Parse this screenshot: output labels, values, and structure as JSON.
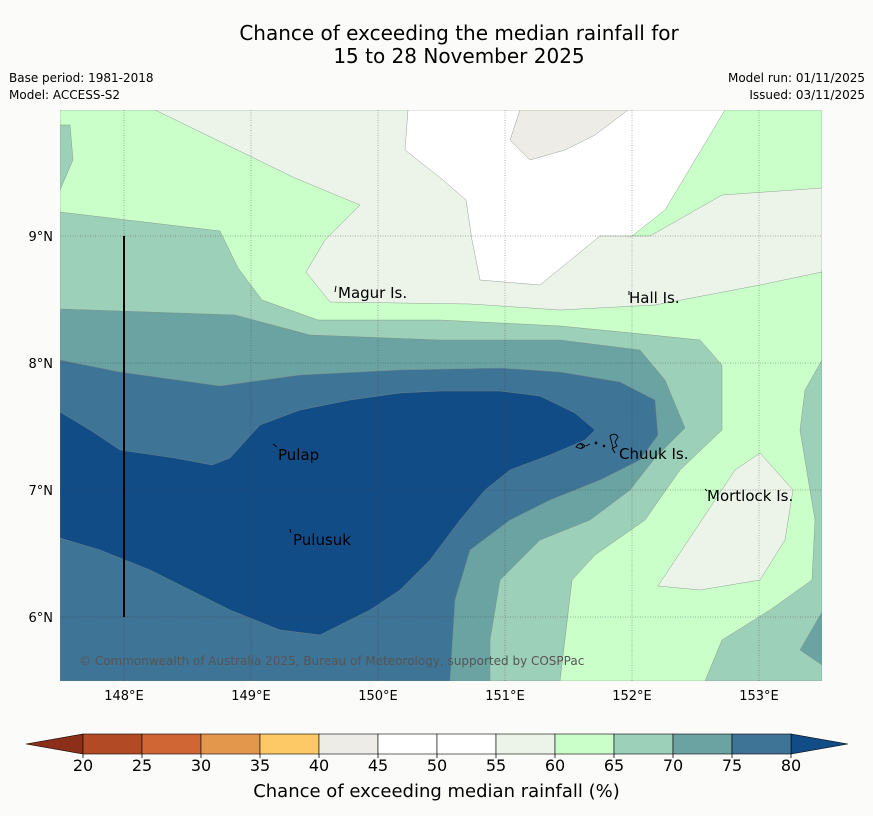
{
  "title": {
    "line1": "Chance of exceeding the median rainfall for",
    "line2": "15 to 28 November 2025"
  },
  "meta": {
    "base_period": "Base period: 1981-2018",
    "model": "Model: ACCESS-S2",
    "model_run": "Model run: 01/11/2025",
    "issued": "Issued: 03/11/2025"
  },
  "map": {
    "lon_range": [
      147.5,
      153.5
    ],
    "lat_range": [
      5.5,
      10.0
    ],
    "lon_ticks": [
      "148°E",
      "149°E",
      "150°E",
      "151°E",
      "152°E",
      "153°E"
    ],
    "lat_ticks": [
      "9°N",
      "8°N",
      "7°N",
      "6°N"
    ],
    "places": [
      {
        "name": "Magur Is.",
        "lon": 149.65,
        "lat": 8.57
      },
      {
        "name": "Hall Is.",
        "lon": 151.95,
        "lat": 8.53
      },
      {
        "name": "Pulap",
        "lon": 149.2,
        "lat": 7.3
      },
      {
        "name": "Chuuk Is.",
        "lon": 151.9,
        "lat": 7.3
      },
      {
        "name": "Mortlock Is.",
        "lon": 152.6,
        "lat": 6.97
      },
      {
        "name": "Pulusuk",
        "lon": 149.32,
        "lat": 6.63
      }
    ],
    "copyright": "© Commonwealth of Australia 2025, Bureau of Meteorology, supported by COSPPac"
  },
  "colorbar": {
    "label": "Chance of exceeding median rainfall (%)",
    "ticks": [
      "20",
      "25",
      "30",
      "35",
      "40",
      "45",
      "50",
      "55",
      "60",
      "65",
      "70",
      "75",
      "80"
    ],
    "colors": [
      "#b24a25",
      "#cf6633",
      "#e3974c",
      "#fdc967",
      "#eeece7",
      "#ffffff",
      "#ffffff",
      "#ecf4ea",
      "#caffca",
      "#9dd0b8",
      "#6ba3a3",
      "#3e7496"
    ],
    "under_color": "#8c2f1a",
    "over_color": "#124c87"
  },
  "palette": {
    "p40": "#eeece7",
    "p45": "#ffffff",
    "p55": "#ecf4ea",
    "p60": "#caffca",
    "p65": "#9dd0b8",
    "p70": "#6ba3a3",
    "p75": "#3e7496",
    "p80": "#124c87"
  }
}
